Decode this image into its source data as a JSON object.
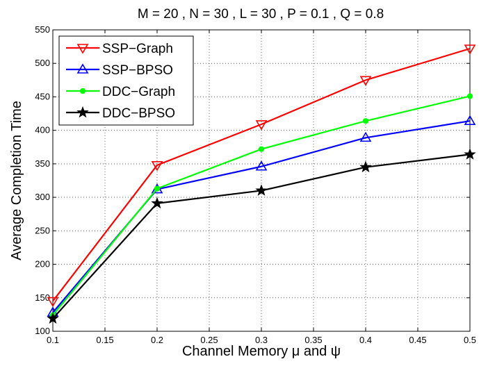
{
  "chart_data": {
    "type": "line",
    "title": "M = 20 , N = 30 , L = 30 , P = 0.1 , Q = 0.8",
    "xlabel": "Channel Memory μ and ψ",
    "ylabel": "Average Completion Time",
    "xlim": [
      0.1,
      0.5
    ],
    "ylim": [
      100,
      550
    ],
    "xticks": [
      0.1,
      0.15,
      0.2,
      0.25,
      0.3,
      0.35,
      0.4,
      0.45,
      0.5
    ],
    "xtick_labels": [
      "0.1",
      "0.15",
      "0.2",
      "0.25",
      "0.3",
      "0.35",
      "0.4",
      "0.45",
      "0.5"
    ],
    "yticks": [
      100,
      150,
      200,
      250,
      300,
      350,
      400,
      450,
      500,
      550
    ],
    "ytick_labels": [
      "100",
      "150",
      "200",
      "250",
      "300",
      "350",
      "400",
      "450",
      "500",
      "550"
    ],
    "grid": true,
    "legend_position": "top-left",
    "x": [
      0.1,
      0.2,
      0.3,
      0.4,
      0.5
    ],
    "series": [
      {
        "name": "SSP−Graph",
        "values": [
          145,
          348,
          409,
          475,
          522
        ],
        "color": "#ff0000",
        "marker": "triangle-down"
      },
      {
        "name": "SSP−BPSO",
        "values": [
          128,
          312,
          346,
          389,
          414
        ],
        "color": "#0000ff",
        "marker": "triangle-up"
      },
      {
        "name": "DDC−Graph",
        "values": [
          124,
          313,
          372,
          414,
          451
        ],
        "color": "#00ff00",
        "marker": "circle"
      },
      {
        "name": "DDC−BPSO",
        "values": [
          119,
          291,
          310,
          345,
          364
        ],
        "color": "#000000",
        "marker": "star"
      }
    ]
  }
}
